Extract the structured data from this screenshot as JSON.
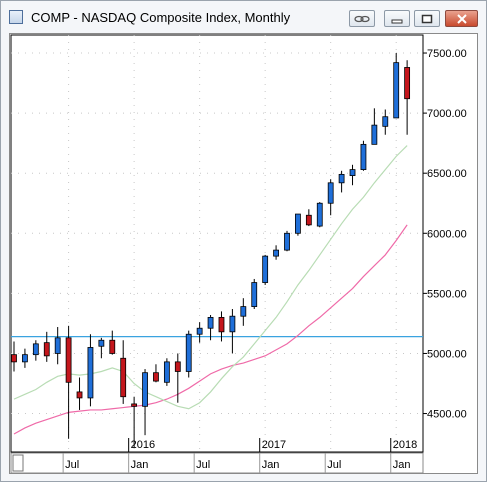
{
  "window": {
    "title": "COMP - NASDAQ Composite Index, Monthly",
    "buttons": [
      "link-icon",
      "minimize-icon",
      "maximize-icon",
      "close-icon"
    ]
  },
  "colors": {
    "up": "#1f6fd9",
    "down": "#c4161c",
    "ma_short": "#b8dcb4",
    "ma_long": "#ef6aa8",
    "hline": "#3aa3e0",
    "grid_dot": "#c8c8c8"
  },
  "chart_data": {
    "type": "candlestick",
    "title": "",
    "y_tick_labels": [
      "7500.00",
      "7000.00",
      "6500.00",
      "6000.00",
      "5500.00",
      "5000.00",
      "4500.00"
    ],
    "y_ticks": [
      7500,
      7000,
      6500,
      6000,
      5500,
      5000,
      4500
    ],
    "ylim": [
      4180,
      7650
    ],
    "year_labels": [
      {
        "label": "2016",
        "index": 11
      },
      {
        "label": "2017",
        "index": 23
      },
      {
        "label": "2018",
        "index": 35
      }
    ],
    "month_labels": [
      {
        "label": "Jul",
        "index": 5
      },
      {
        "label": "Jan",
        "index": 11
      },
      {
        "label": "Jul",
        "index": 17
      },
      {
        "label": "Jan",
        "index": 23
      },
      {
        "label": "Jul",
        "index": 29
      },
      {
        "label": "Jan",
        "index": 35
      }
    ],
    "horizontal_line": 5140,
    "candles": [
      {
        "o": 4990,
        "h": 5100,
        "l": 4850,
        "c": 4930
      },
      {
        "o": 4930,
        "h": 5040,
        "l": 4880,
        "c": 4990
      },
      {
        "o": 4990,
        "h": 5110,
        "l": 4940,
        "c": 5080
      },
      {
        "o": 5090,
        "h": 5180,
        "l": 4930,
        "c": 4980
      },
      {
        "o": 5000,
        "h": 5220,
        "l": 4910,
        "c": 5130
      },
      {
        "o": 5130,
        "h": 5230,
        "l": 4290,
        "c": 4760
      },
      {
        "o": 4680,
        "h": 4800,
        "l": 4530,
        "c": 4630
      },
      {
        "o": 4630,
        "h": 5160,
        "l": 4560,
        "c": 5050
      },
      {
        "o": 5060,
        "h": 5130,
        "l": 4960,
        "c": 5110
      },
      {
        "o": 5110,
        "h": 5190,
        "l": 4990,
        "c": 5000
      },
      {
        "o": 4960,
        "h": 5110,
        "l": 4580,
        "c": 4640
      },
      {
        "o": 4580,
        "h": 4640,
        "l": 4220,
        "c": 4560
      },
      {
        "o": 4560,
        "h": 4870,
        "l": 4320,
        "c": 4840
      },
      {
        "o": 4840,
        "h": 4910,
        "l": 4760,
        "c": 4770
      },
      {
        "o": 4760,
        "h": 4960,
        "l": 4730,
        "c": 4930
      },
      {
        "o": 4930,
        "h": 5000,
        "l": 4590,
        "c": 4850
      },
      {
        "o": 4850,
        "h": 5190,
        "l": 4800,
        "c": 5160
      },
      {
        "o": 5160,
        "h": 5260,
        "l": 5090,
        "c": 5210
      },
      {
        "o": 5210,
        "h": 5320,
        "l": 5110,
        "c": 5300
      },
      {
        "o": 5300,
        "h": 5350,
        "l": 5100,
        "c": 5180
      },
      {
        "o": 5180,
        "h": 5370,
        "l": 5000,
        "c": 5310
      },
      {
        "o": 5310,
        "h": 5460,
        "l": 5230,
        "c": 5390
      },
      {
        "o": 5390,
        "h": 5620,
        "l": 5370,
        "c": 5590
      },
      {
        "o": 5590,
        "h": 5820,
        "l": 5570,
        "c": 5810
      },
      {
        "o": 5810,
        "h": 5900,
        "l": 5780,
        "c": 5860
      },
      {
        "o": 5860,
        "h": 6020,
        "l": 5850,
        "c": 6000
      },
      {
        "o": 6000,
        "h": 6160,
        "l": 5980,
        "c": 6160
      },
      {
        "o": 6150,
        "h": 6200,
        "l": 6060,
        "c": 6070
      },
      {
        "o": 6060,
        "h": 6260,
        "l": 6050,
        "c": 6250
      },
      {
        "o": 6250,
        "h": 6450,
        "l": 6150,
        "c": 6420
      },
      {
        "o": 6420,
        "h": 6520,
        "l": 6340,
        "c": 6490
      },
      {
        "o": 6480,
        "h": 6570,
        "l": 6400,
        "c": 6530
      },
      {
        "o": 6530,
        "h": 6770,
        "l": 6520,
        "c": 6740
      },
      {
        "o": 6740,
        "h": 7040,
        "l": 6740,
        "c": 6900
      },
      {
        "o": 6890,
        "h": 7030,
        "l": 6820,
        "c": 6970
      },
      {
        "o": 6960,
        "h": 7500,
        "l": 6960,
        "c": 7420
      },
      {
        "o": 7380,
        "h": 7440,
        "l": 6820,
        "c": 7120
      }
    ],
    "ma_short": [
      4620,
      4660,
      4700,
      4760,
      4810,
      4830,
      4820,
      4830,
      4850,
      4880,
      4850,
      4750,
      4680,
      4640,
      4600,
      4560,
      4540,
      4590,
      4680,
      4790,
      4890,
      4970,
      5080,
      5190,
      5300,
      5430,
      5570,
      5690,
      5820,
      5950,
      6080,
      6200,
      6300,
      6420,
      6530,
      6640,
      6730
    ],
    "ma_long": [
      4330,
      4380,
      4420,
      4450,
      4480,
      4510,
      4520,
      4530,
      4530,
      4540,
      4550,
      4560,
      4570,
      4590,
      4620,
      4660,
      4710,
      4770,
      4830,
      4870,
      4900,
      4920,
      4950,
      4980,
      5030,
      5080,
      5150,
      5230,
      5300,
      5380,
      5460,
      5540,
      5640,
      5730,
      5820,
      5940,
      6070
    ]
  }
}
